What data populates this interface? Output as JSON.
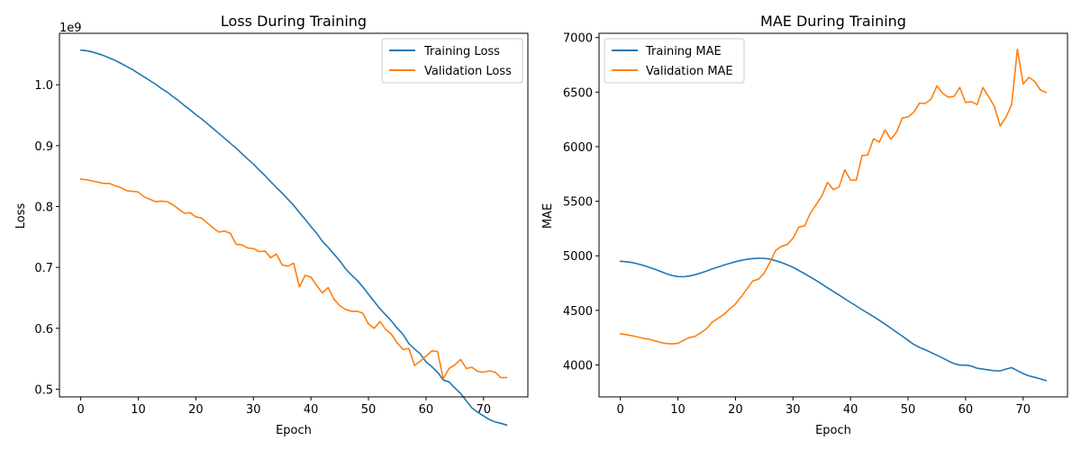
{
  "chart_data": [
    {
      "type": "line",
      "title": "Loss During Training",
      "xlabel": "Epoch",
      "ylabel": "Loss",
      "offset_text": "1e9",
      "xlim": [
        -3.7,
        77.7
      ],
      "ylim": [
        0.4873,
        1.0846
      ],
      "xticks": [
        0,
        10,
        20,
        30,
        40,
        50,
        60,
        70
      ],
      "yticks": [
        0.5,
        0.6,
        0.7,
        0.8,
        0.9,
        1.0
      ],
      "ytick_labels": [
        "0.5",
        "0.6",
        "0.7",
        "0.8",
        "0.9",
        "1.0"
      ],
      "legend_position": "upper right",
      "grid": false,
      "series": [
        {
          "name": "Training Loss",
          "color": "#1f77b4",
          "x": [
            0,
            1,
            2,
            3,
            4,
            5,
            6,
            7,
            8,
            9,
            10,
            11,
            12,
            13,
            14,
            15,
            16,
            17,
            18,
            19,
            20,
            21,
            22,
            23,
            24,
            25,
            26,
            27,
            28,
            29,
            30,
            31,
            32,
            33,
            34,
            35,
            36,
            37,
            38,
            39,
            40,
            41,
            42,
            43,
            44,
            45,
            46,
            47,
            48,
            49,
            50,
            51,
            52,
            53,
            54,
            55,
            56,
            57,
            58,
            59,
            60,
            61,
            62,
            63,
            64,
            65,
            66,
            67,
            68,
            69,
            70,
            71,
            72,
            73,
            74
          ],
          "y": [
            1.057,
            1.056,
            1.054,
            1.051,
            1.048,
            1.044,
            1.04,
            1.035,
            1.03,
            1.025,
            1.019,
            1.013,
            1.007,
            1.001,
            0.994,
            0.988,
            0.981,
            0.974,
            0.966,
            0.959,
            0.951,
            0.944,
            0.936,
            0.928,
            0.92,
            0.912,
            0.904,
            0.896,
            0.887,
            0.878,
            0.87,
            0.86,
            0.851,
            0.841,
            0.831,
            0.822,
            0.812,
            0.802,
            0.79,
            0.779,
            0.767,
            0.756,
            0.743,
            0.733,
            0.722,
            0.711,
            0.698,
            0.688,
            0.679,
            0.668,
            0.656,
            0.644,
            0.632,
            0.622,
            0.612,
            0.6,
            0.59,
            0.575,
            0.566,
            0.558,
            0.545,
            0.537,
            0.528,
            0.515,
            0.512,
            0.502,
            0.493,
            0.481,
            0.469,
            0.462,
            0.456,
            0.45,
            0.446,
            0.444,
            0.441
          ]
        },
        {
          "name": "Validation Loss",
          "color": "#ff7f0e",
          "x": [
            0,
            1,
            2,
            3,
            4,
            5,
            6,
            7,
            8,
            9,
            10,
            11,
            12,
            13,
            14,
            15,
            16,
            17,
            18,
            19,
            20,
            21,
            22,
            23,
            24,
            25,
            26,
            27,
            28,
            29,
            30,
            31,
            32,
            33,
            34,
            35,
            36,
            37,
            38,
            39,
            40,
            41,
            42,
            43,
            44,
            45,
            46,
            47,
            48,
            49,
            50,
            51,
            52,
            53,
            54,
            55,
            56,
            57,
            58,
            59,
            60,
            61,
            62,
            63,
            64,
            65,
            66,
            67,
            68,
            69,
            70,
            71,
            72,
            73,
            74
          ],
          "y": [
            0.845,
            0.844,
            0.842,
            0.84,
            0.838,
            0.838,
            0.834,
            0.831,
            0.826,
            0.825,
            0.824,
            0.816,
            0.812,
            0.808,
            0.809,
            0.808,
            0.803,
            0.796,
            0.789,
            0.79,
            0.783,
            0.781,
            0.773,
            0.765,
            0.758,
            0.76,
            0.756,
            0.738,
            0.737,
            0.732,
            0.731,
            0.726,
            0.727,
            0.716,
            0.722,
            0.704,
            0.702,
            0.707,
            0.668,
            0.687,
            0.684,
            0.67,
            0.658,
            0.667,
            0.648,
            0.637,
            0.631,
            0.628,
            0.628,
            0.625,
            0.607,
            0.6,
            0.611,
            0.598,
            0.59,
            0.576,
            0.565,
            0.567,
            0.539,
            0.546,
            0.554,
            0.563,
            0.562,
            0.517,
            0.534,
            0.54,
            0.549,
            0.534,
            0.536,
            0.529,
            0.528,
            0.53,
            0.528,
            0.519,
            0.519
          ]
        }
      ]
    },
    {
      "type": "line",
      "title": "MAE During Training",
      "xlabel": "Epoch",
      "ylabel": "MAE",
      "xlim": [
        -3.7,
        77.7
      ],
      "ylim": [
        3707,
        7039
      ],
      "xticks": [
        0,
        10,
        20,
        30,
        40,
        50,
        60,
        70
      ],
      "yticks": [
        4000,
        4500,
        5000,
        5500,
        6000,
        6500,
        7000
      ],
      "ytick_labels": [
        "4000",
        "4500",
        "5000",
        "5500",
        "6000",
        "6500",
        "7000"
      ],
      "legend_position": "upper left",
      "grid": false,
      "series": [
        {
          "name": "Training MAE",
          "color": "#1f77b4",
          "x": [
            0,
            1,
            2,
            3,
            4,
            5,
            6,
            7,
            8,
            9,
            10,
            11,
            12,
            13,
            14,
            15,
            16,
            17,
            18,
            19,
            20,
            21,
            22,
            23,
            24,
            25,
            26,
            27,
            28,
            29,
            30,
            31,
            32,
            33,
            34,
            35,
            36,
            37,
            38,
            39,
            40,
            41,
            42,
            43,
            44,
            45,
            46,
            47,
            48,
            49,
            50,
            51,
            52,
            53,
            54,
            55,
            56,
            57,
            58,
            59,
            60,
            61,
            62,
            63,
            64,
            65,
            66,
            67,
            68,
            69,
            70,
            71,
            72,
            73,
            74
          ],
          "y": [
            4950,
            4946,
            4938,
            4927,
            4912,
            4895,
            4876,
            4857,
            4836,
            4820,
            4810,
            4808,
            4815,
            4827,
            4843,
            4861,
            4880,
            4898,
            4915,
            4931,
            4946,
            4958,
            4968,
            4975,
            4978,
            4977,
            4970,
            4955,
            4938,
            4918,
            4895,
            4866,
            4837,
            4806,
            4775,
            4741,
            4707,
            4674,
            4641,
            4606,
            4573,
            4540,
            4507,
            4475,
            4443,
            4409,
            4373,
            4337,
            4300,
            4264,
            4225,
            4188,
            4160,
            4139,
            4114,
            4089,
            4063,
            4036,
            4012,
            3998,
            3998,
            3990,
            3969,
            3962,
            3954,
            3946,
            3945,
            3962,
            3975,
            3948,
            3921,
            3900,
            3887,
            3872,
            3856
          ]
        },
        {
          "name": "Validation MAE",
          "color": "#ff7f0e",
          "x": [
            0,
            1,
            2,
            3,
            4,
            5,
            6,
            7,
            8,
            9,
            10,
            11,
            12,
            13,
            14,
            15,
            16,
            17,
            18,
            19,
            20,
            21,
            22,
            23,
            24,
            25,
            26,
            27,
            28,
            29,
            30,
            31,
            32,
            33,
            34,
            35,
            36,
            37,
            38,
            39,
            40,
            41,
            42,
            43,
            44,
            45,
            46,
            47,
            48,
            49,
            50,
            51,
            52,
            53,
            54,
            55,
            56,
            57,
            58,
            59,
            60,
            61,
            62,
            63,
            64,
            65,
            66,
            67,
            68,
            69,
            70,
            71,
            72,
            73,
            74
          ],
          "y": [
            4285,
            4278,
            4268,
            4256,
            4244,
            4235,
            4221,
            4205,
            4196,
            4193,
            4197,
            4226,
            4251,
            4262,
            4296,
            4334,
            4393,
            4428,
            4462,
            4514,
            4558,
            4624,
            4697,
            4769,
            4786,
            4841,
            4941,
            5050,
            5087,
            5103,
            5161,
            5263,
            5274,
            5388,
            5467,
            5545,
            5673,
            5607,
            5630,
            5789,
            5694,
            5693,
            5918,
            5924,
            6073,
            6042,
            6154,
            6068,
            6134,
            6263,
            6272,
            6316,
            6399,
            6396,
            6436,
            6557,
            6490,
            6453,
            6462,
            6543,
            6405,
            6413,
            6386,
            6542,
            6458,
            6368,
            6190,
            6268,
            6385,
            6893,
            6574,
            6636,
            6598,
            6519,
            6497
          ]
        }
      ]
    }
  ]
}
